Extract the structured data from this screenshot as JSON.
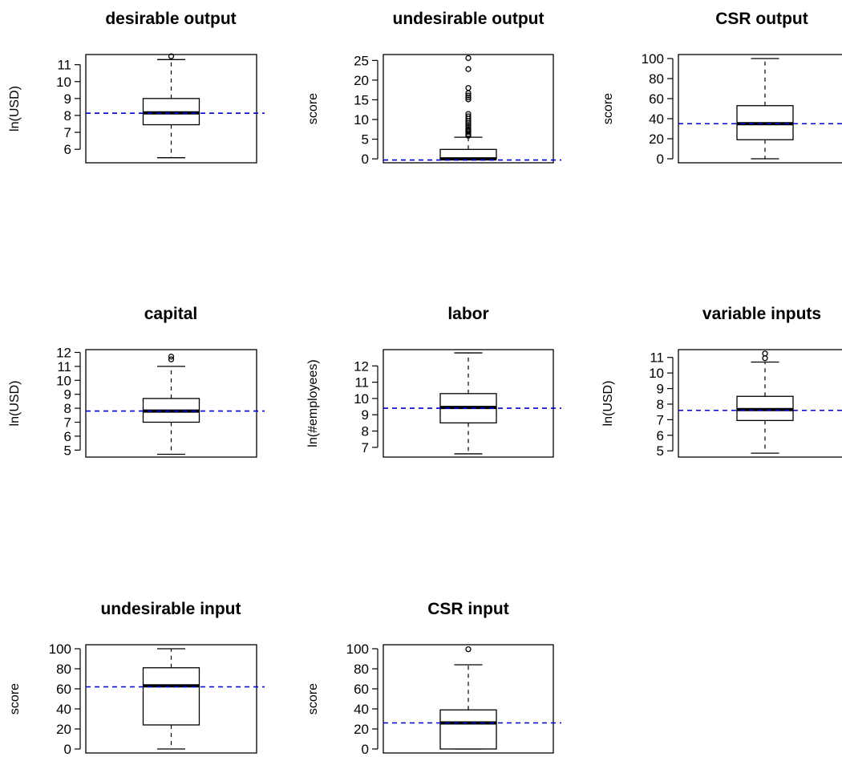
{
  "chart_data": [
    {
      "type": "boxplot",
      "title": "desirable output",
      "ylabel": "ln(USD)",
      "yticks": [
        6,
        7,
        8,
        9,
        10,
        11
      ],
      "ylim": [
        5.2,
        11.6
      ],
      "box": {
        "whisker_low": 5.5,
        "q1": 7.45,
        "median": 8.15,
        "q3": 9.0,
        "whisker_high": 11.3,
        "outliers": [
          11.5
        ]
      },
      "mean": 8.13
    },
    {
      "type": "boxplot",
      "title": "undesirable output",
      "ylabel": "score",
      "yticks": [
        0,
        5,
        10,
        15,
        20,
        25
      ],
      "ylim": [
        -1.0,
        26.5
      ],
      "box": {
        "whisker_low": 0,
        "q1": 0,
        "median": 0,
        "q3": 2.4,
        "whisker_high": 5.5,
        "outliers": [
          5.9,
          6.3,
          6.8,
          7.2,
          7.6,
          8.1,
          8.6,
          9.1,
          9.6,
          10.2,
          10.8,
          11.4,
          15.1,
          15.6,
          16.1,
          16.7,
          18.0,
          22.8,
          25.6
        ]
      },
      "mean": -0.3
    },
    {
      "type": "boxplot",
      "title": "CSR output",
      "ylabel": "score",
      "yticks": [
        0,
        20,
        40,
        60,
        80,
        100
      ],
      "ylim": [
        -4,
        104
      ],
      "box": {
        "whisker_low": 0,
        "q1": 19,
        "median": 35,
        "q3": 53,
        "whisker_high": 100,
        "outliers": []
      },
      "mean": 35
    },
    {
      "type": "boxplot",
      "title": "capital",
      "ylabel": "ln(USD)",
      "yticks": [
        5,
        6,
        7,
        8,
        9,
        10,
        11,
        12
      ],
      "ylim": [
        4.5,
        12.2
      ],
      "box": {
        "whisker_low": 4.7,
        "q1": 7.0,
        "median": 7.8,
        "q3": 8.7,
        "whisker_high": 11.0,
        "outliers": [
          11.5,
          11.7
        ]
      },
      "mean": 7.8
    },
    {
      "type": "boxplot",
      "title": "labor",
      "ylabel": "ln(#employees)",
      "yticks": [
        7,
        8,
        9,
        10,
        11,
        12
      ],
      "ylim": [
        6.4,
        13.0
      ],
      "box": {
        "whisker_low": 6.6,
        "q1": 8.5,
        "median": 9.45,
        "q3": 10.3,
        "whisker_high": 12.8,
        "outliers": []
      },
      "mean": 9.4
    },
    {
      "type": "boxplot",
      "title": "variable inputs",
      "ylabel": "ln(USD)",
      "yticks": [
        5,
        6,
        7,
        8,
        9,
        10,
        11
      ],
      "ylim": [
        4.6,
        11.5
      ],
      "box": {
        "whisker_low": 4.85,
        "q1": 6.95,
        "median": 7.65,
        "q3": 8.5,
        "whisker_high": 10.7,
        "outliers": [
          10.95,
          11.25
        ]
      },
      "mean": 7.6
    },
    {
      "type": "boxplot",
      "title": "undesirable input",
      "ylabel": "score",
      "yticks": [
        0,
        20,
        40,
        60,
        80,
        100
      ],
      "ylim": [
        -4,
        104
      ],
      "box": {
        "whisker_low": 0,
        "q1": 24,
        "median": 63,
        "q3": 81,
        "whisker_high": 100,
        "outliers": []
      },
      "mean": 62
    },
    {
      "type": "boxplot",
      "title": "CSR input",
      "ylabel": "score",
      "yticks": [
        0,
        20,
        40,
        60,
        80,
        100
      ],
      "ylim": [
        -4,
        104
      ],
      "box": {
        "whisker_low": 0,
        "q1": 0,
        "median": 26,
        "q3": 39,
        "whisker_high": 84,
        "outliers": [
          99.5
        ]
      },
      "mean": 26
    }
  ],
  "colors": {
    "mean_line": "#0000cc",
    "median_line": "#000000",
    "box_stroke": "#000000"
  }
}
